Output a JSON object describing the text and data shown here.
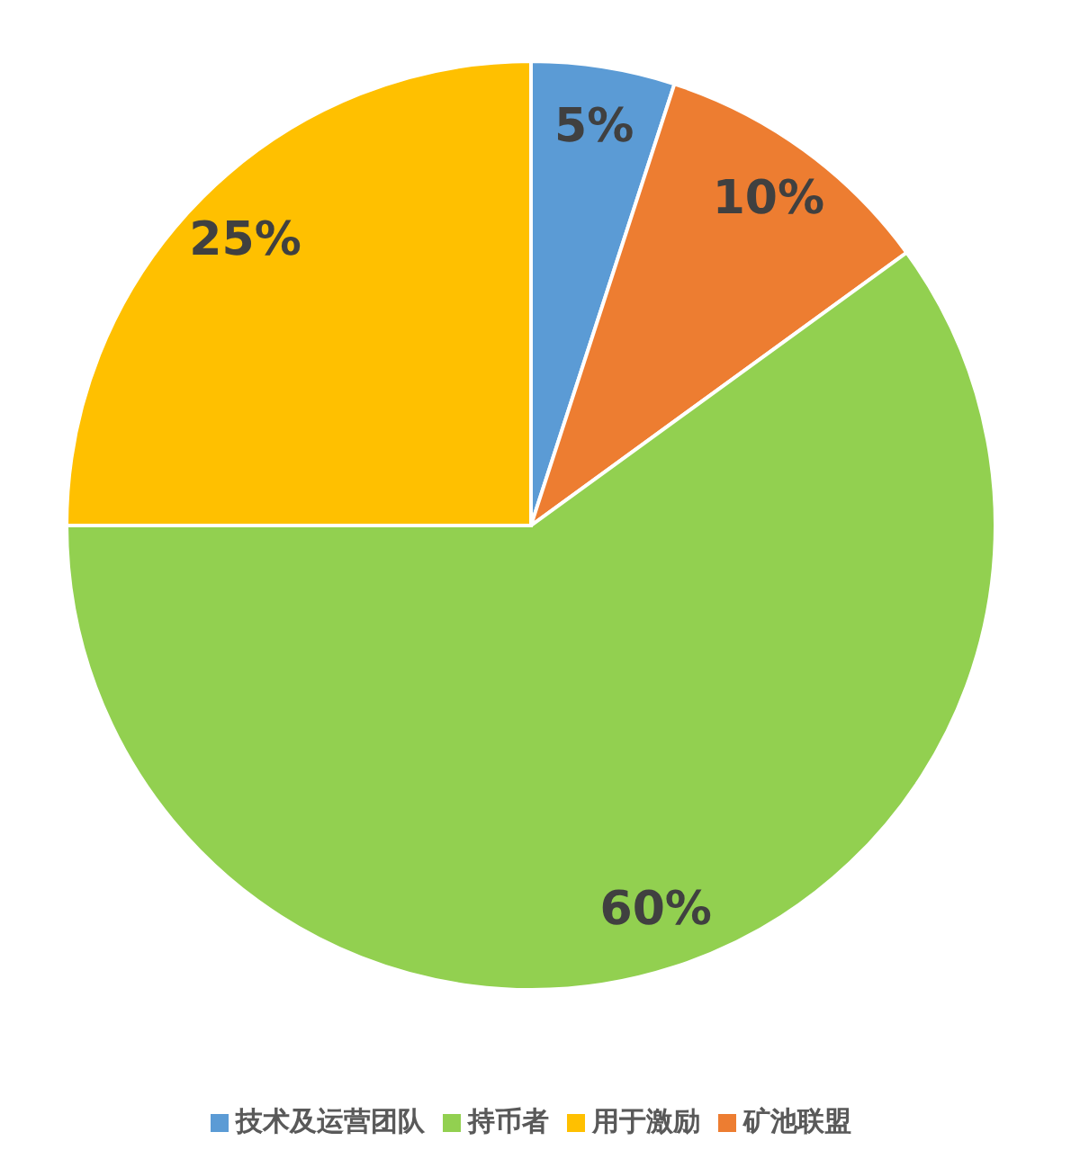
{
  "chart_data": {
    "type": "pie",
    "categories": [
      "技术及运营团队",
      "矿池联盟",
      "持币者",
      "用于激励"
    ],
    "values": [
      5,
      10,
      60,
      25
    ],
    "colors": [
      "#5b9bd5",
      "#ed7d31",
      "#92d050",
      "#ffc000"
    ],
    "value_labels": [
      "5%",
      "10%",
      "60%",
      "25%"
    ],
    "legend": "bottom"
  }
}
